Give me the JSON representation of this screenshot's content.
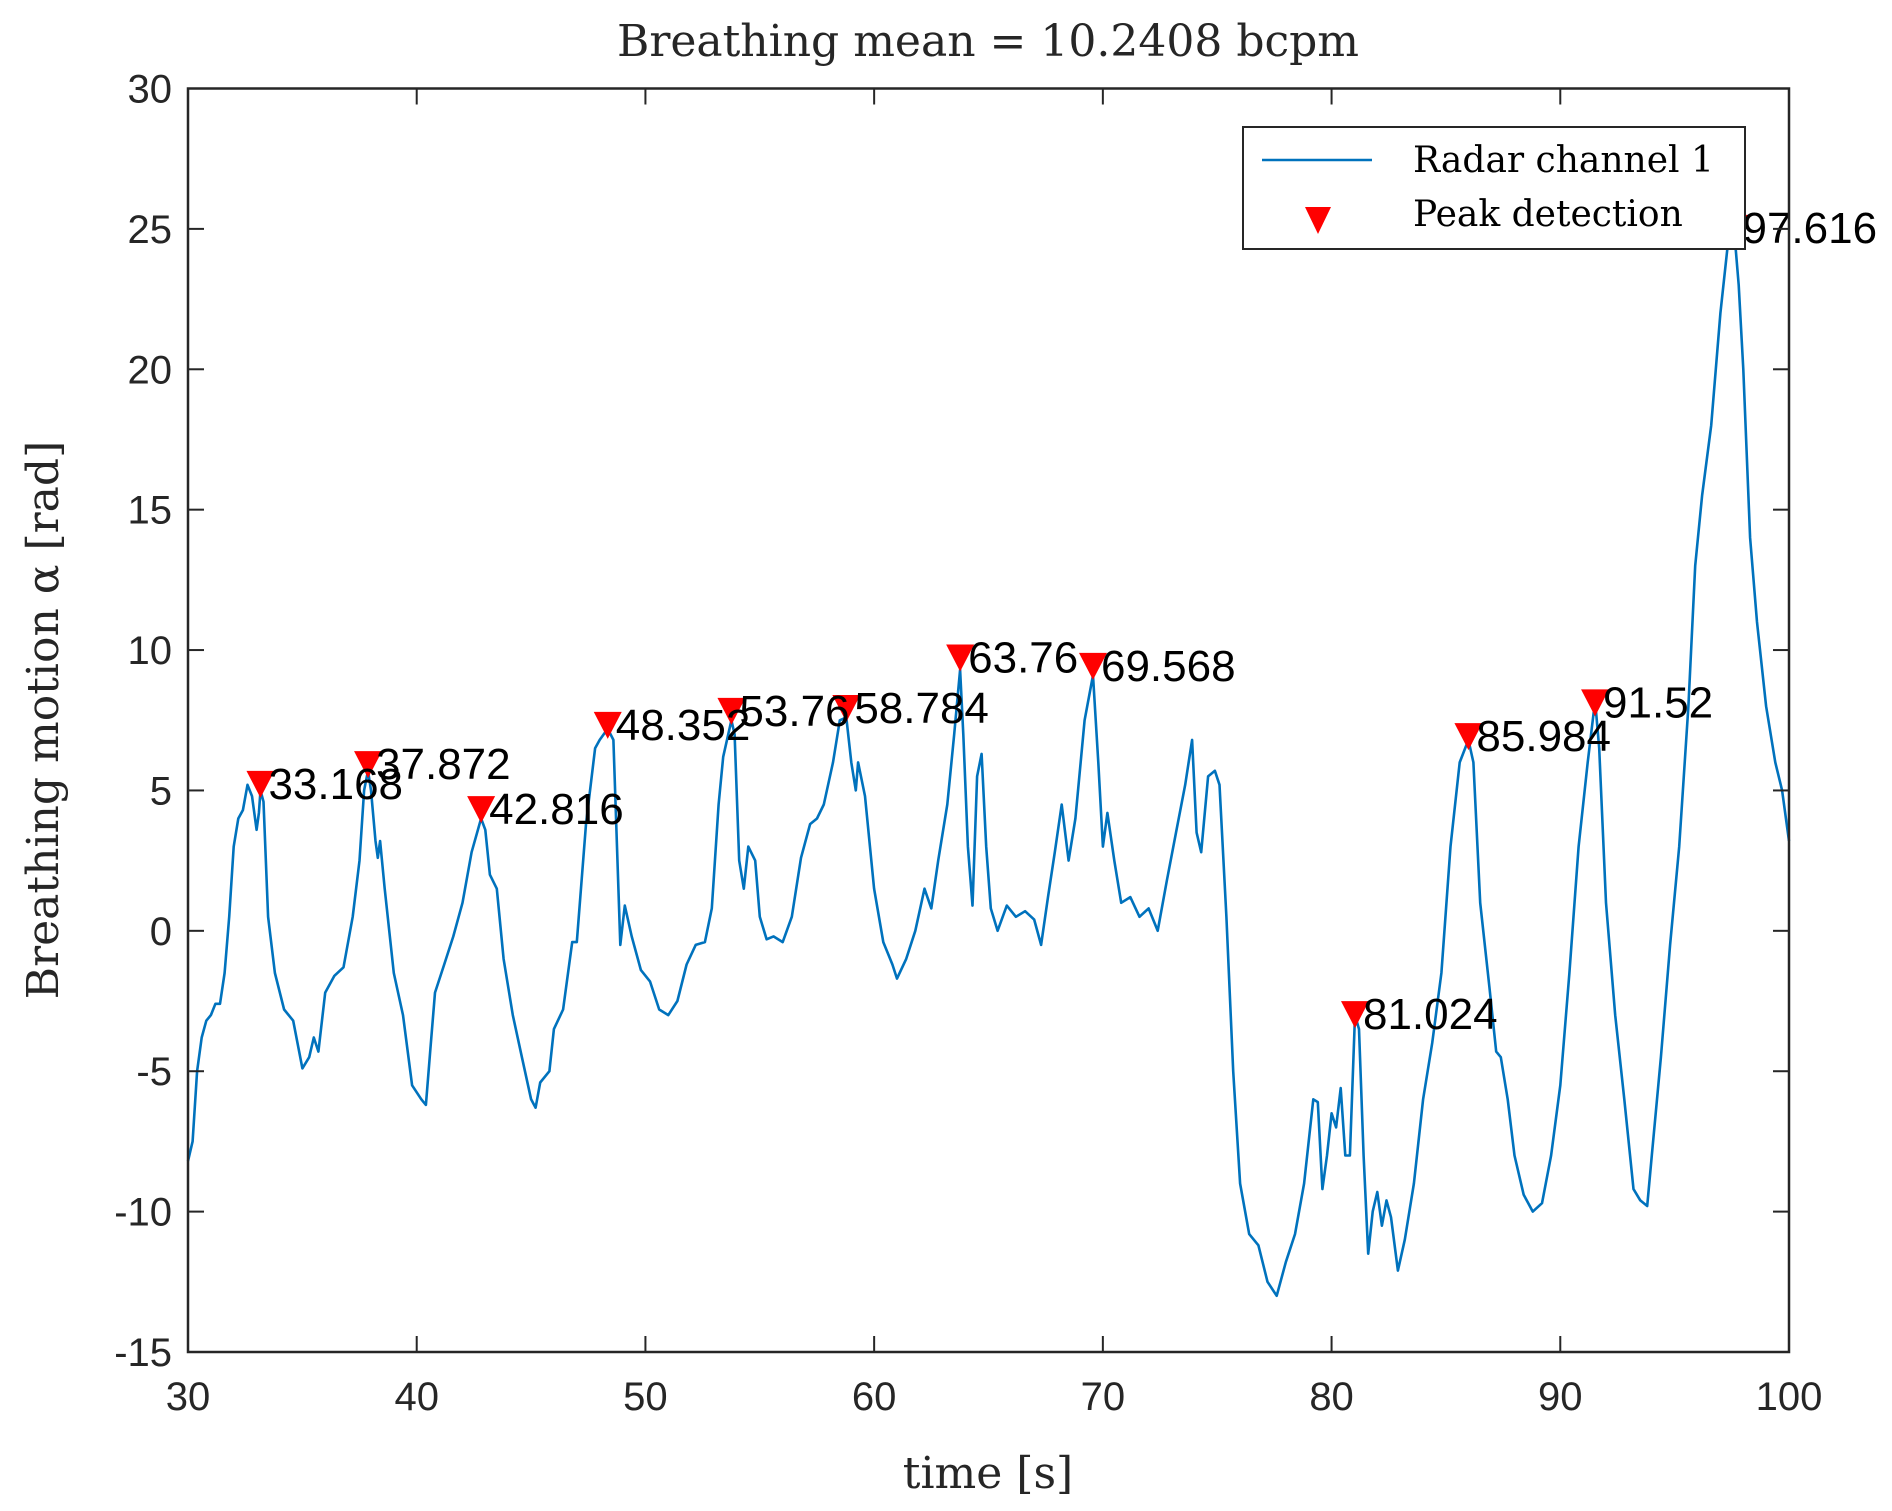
{
  "chart_data": {
    "type": "line",
    "title": "Breathing mean = 10.2408 bcpm",
    "xlabel": "time [s]",
    "ylabel": "Breathing motion α [rad]",
    "xlim": [
      30,
      100
    ],
    "ylim": [
      -15,
      30
    ],
    "xticks": [
      30,
      40,
      50,
      60,
      70,
      80,
      90,
      100
    ],
    "yticks": [
      -15,
      -10,
      -5,
      0,
      5,
      10,
      15,
      20,
      25,
      30
    ],
    "grid": false,
    "legend": {
      "placement": "top-right",
      "entries": [
        {
          "label": "Radar channel 1",
          "marker": "line",
          "color": "#0072BD"
        },
        {
          "label": "Peak detection",
          "marker": "triangle-down",
          "color": "#FF0000"
        }
      ]
    },
    "series": [
      {
        "name": "Radar channel 1",
        "color": "#0072BD",
        "points": [
          [
            30.0,
            -8.2
          ],
          [
            30.2,
            -7.5
          ],
          [
            30.4,
            -5.0
          ],
          [
            30.6,
            -3.8
          ],
          [
            30.8,
            -3.2
          ],
          [
            31.0,
            -3.0
          ],
          [
            31.2,
            -2.6
          ],
          [
            31.4,
            -2.6
          ],
          [
            31.6,
            -1.5
          ],
          [
            31.8,
            0.5
          ],
          [
            32.0,
            3.0
          ],
          [
            32.2,
            4.0
          ],
          [
            32.4,
            4.3
          ],
          [
            32.6,
            5.2
          ],
          [
            32.8,
            4.8
          ],
          [
            33.0,
            3.6
          ],
          [
            33.1,
            4.2
          ],
          [
            33.168,
            5.0
          ],
          [
            33.3,
            4.6
          ],
          [
            33.5,
            0.5
          ],
          [
            33.8,
            -1.5
          ],
          [
            34.2,
            -2.8
          ],
          [
            34.6,
            -3.2
          ],
          [
            35.0,
            -4.9
          ],
          [
            35.3,
            -4.5
          ],
          [
            35.5,
            -3.8
          ],
          [
            35.7,
            -4.3
          ],
          [
            36.0,
            -2.2
          ],
          [
            36.4,
            -1.6
          ],
          [
            36.8,
            -1.3
          ],
          [
            37.2,
            0.5
          ],
          [
            37.5,
            2.5
          ],
          [
            37.7,
            5.0
          ],
          [
            37.872,
            5.7
          ],
          [
            38.0,
            5.0
          ],
          [
            38.2,
            3.2
          ],
          [
            38.3,
            2.6
          ],
          [
            38.4,
            3.2
          ],
          [
            38.6,
            1.5
          ],
          [
            39.0,
            -1.5
          ],
          [
            39.4,
            -3.0
          ],
          [
            39.8,
            -5.5
          ],
          [
            40.2,
            -6.0
          ],
          [
            40.4,
            -6.2
          ],
          [
            40.6,
            -4.2
          ],
          [
            40.8,
            -2.2
          ],
          [
            41.2,
            -1.2
          ],
          [
            41.6,
            -0.2
          ],
          [
            42.0,
            1.0
          ],
          [
            42.4,
            2.8
          ],
          [
            42.816,
            4.0
          ],
          [
            43.0,
            3.6
          ],
          [
            43.2,
            2.0
          ],
          [
            43.5,
            1.5
          ],
          [
            43.8,
            -1.0
          ],
          [
            44.2,
            -3.0
          ],
          [
            44.6,
            -4.5
          ],
          [
            45.0,
            -6.0
          ],
          [
            45.2,
            -6.3
          ],
          [
            45.4,
            -5.4
          ],
          [
            45.8,
            -5.0
          ],
          [
            46.0,
            -3.5
          ],
          [
            46.4,
            -2.8
          ],
          [
            46.8,
            -0.4
          ],
          [
            47.0,
            -0.4
          ],
          [
            47.4,
            3.8
          ],
          [
            47.8,
            6.5
          ],
          [
            48.0,
            6.8
          ],
          [
            48.352,
            7.2
          ],
          [
            48.6,
            6.8
          ],
          [
            48.9,
            -0.5
          ],
          [
            49.1,
            0.9
          ],
          [
            49.4,
            -0.2
          ],
          [
            49.8,
            -1.4
          ],
          [
            50.2,
            -1.8
          ],
          [
            50.6,
            -2.8
          ],
          [
            51.0,
            -3.0
          ],
          [
            51.4,
            -2.5
          ],
          [
            51.8,
            -1.2
          ],
          [
            52.2,
            -0.5
          ],
          [
            52.6,
            -0.4
          ],
          [
            52.9,
            0.8
          ],
          [
            53.2,
            4.5
          ],
          [
            53.4,
            6.2
          ],
          [
            53.76,
            7.5
          ],
          [
            53.9,
            7.0
          ],
          [
            54.1,
            2.5
          ],
          [
            54.3,
            1.5
          ],
          [
            54.5,
            3.0
          ],
          [
            54.8,
            2.5
          ],
          [
            55.0,
            0.5
          ],
          [
            55.3,
            -0.3
          ],
          [
            55.6,
            -0.2
          ],
          [
            56.0,
            -0.4
          ],
          [
            56.4,
            0.5
          ],
          [
            56.8,
            2.6
          ],
          [
            57.2,
            3.8
          ],
          [
            57.5,
            4.0
          ],
          [
            57.8,
            4.5
          ],
          [
            58.2,
            6.0
          ],
          [
            58.5,
            7.5
          ],
          [
            58.784,
            7.6
          ],
          [
            59.0,
            6.0
          ],
          [
            59.2,
            5.0
          ],
          [
            59.3,
            6.0
          ],
          [
            59.6,
            4.8
          ],
          [
            60.0,
            1.5
          ],
          [
            60.4,
            -0.4
          ],
          [
            60.8,
            -1.2
          ],
          [
            61.0,
            -1.7
          ],
          [
            61.4,
            -1.0
          ],
          [
            61.8,
            0.0
          ],
          [
            62.2,
            1.5
          ],
          [
            62.5,
            0.8
          ],
          [
            62.8,
            2.5
          ],
          [
            63.2,
            4.5
          ],
          [
            63.5,
            7.0
          ],
          [
            63.76,
            9.3
          ],
          [
            63.9,
            7.0
          ],
          [
            64.1,
            3.0
          ],
          [
            64.3,
            0.9
          ],
          [
            64.5,
            5.5
          ],
          [
            64.7,
            6.3
          ],
          [
            64.9,
            3.0
          ],
          [
            65.1,
            0.8
          ],
          [
            65.4,
            0.0
          ],
          [
            65.8,
            0.9
          ],
          [
            66.2,
            0.5
          ],
          [
            66.6,
            0.7
          ],
          [
            67.0,
            0.4
          ],
          [
            67.3,
            -0.5
          ],
          [
            67.6,
            1.2
          ],
          [
            67.9,
            2.8
          ],
          [
            68.2,
            4.5
          ],
          [
            68.5,
            2.5
          ],
          [
            68.8,
            4.0
          ],
          [
            69.2,
            7.5
          ],
          [
            69.568,
            9.1
          ],
          [
            69.8,
            6.0
          ],
          [
            70.0,
            3.0
          ],
          [
            70.2,
            4.2
          ],
          [
            70.5,
            2.5
          ],
          [
            70.8,
            1.0
          ],
          [
            71.2,
            1.2
          ],
          [
            71.6,
            0.5
          ],
          [
            72.0,
            0.8
          ],
          [
            72.4,
            0.0
          ],
          [
            72.8,
            1.8
          ],
          [
            73.2,
            3.5
          ],
          [
            73.6,
            5.2
          ],
          [
            73.9,
            6.8
          ],
          [
            74.1,
            3.5
          ],
          [
            74.3,
            2.8
          ],
          [
            74.6,
            5.5
          ],
          [
            74.9,
            5.7
          ],
          [
            75.1,
            5.2
          ],
          [
            75.4,
            0.5
          ],
          [
            75.7,
            -5.0
          ],
          [
            76.0,
            -9.0
          ],
          [
            76.4,
            -10.8
          ],
          [
            76.8,
            -11.2
          ],
          [
            77.2,
            -12.5
          ],
          [
            77.6,
            -13.0
          ],
          [
            78.0,
            -11.8
          ],
          [
            78.4,
            -10.8
          ],
          [
            78.8,
            -9.0
          ],
          [
            79.2,
            -6.0
          ],
          [
            79.4,
            -6.1
          ],
          [
            79.6,
            -9.2
          ],
          [
            79.8,
            -8.0
          ],
          [
            80.0,
            -6.5
          ],
          [
            80.2,
            -7.0
          ],
          [
            80.4,
            -5.6
          ],
          [
            80.6,
            -8.0
          ],
          [
            80.8,
            -8.0
          ],
          [
            81.024,
            -3.0
          ],
          [
            81.2,
            -3.5
          ],
          [
            81.4,
            -8.0
          ],
          [
            81.6,
            -11.5
          ],
          [
            81.8,
            -10.0
          ],
          [
            82.0,
            -9.3
          ],
          [
            82.2,
            -10.5
          ],
          [
            82.4,
            -9.6
          ],
          [
            82.6,
            -10.2
          ],
          [
            82.9,
            -12.1
          ],
          [
            83.2,
            -11.0
          ],
          [
            83.6,
            -9.0
          ],
          [
            84.0,
            -6.0
          ],
          [
            84.4,
            -4.0
          ],
          [
            84.8,
            -1.5
          ],
          [
            85.2,
            3.0
          ],
          [
            85.6,
            6.0
          ],
          [
            85.984,
            6.8
          ],
          [
            86.2,
            6.0
          ],
          [
            86.5,
            1.0
          ],
          [
            86.9,
            -2.0
          ],
          [
            87.2,
            -4.3
          ],
          [
            87.4,
            -4.5
          ],
          [
            87.7,
            -6.0
          ],
          [
            88.0,
            -8.0
          ],
          [
            88.4,
            -9.4
          ],
          [
            88.8,
            -10.0
          ],
          [
            89.2,
            -9.7
          ],
          [
            89.6,
            -8.0
          ],
          [
            90.0,
            -5.5
          ],
          [
            90.4,
            -1.5
          ],
          [
            90.8,
            3.0
          ],
          [
            91.2,
            6.0
          ],
          [
            91.52,
            8.2
          ],
          [
            91.7,
            6.5
          ],
          [
            92.0,
            1.0
          ],
          [
            92.4,
            -3.0
          ],
          [
            92.8,
            -6.0
          ],
          [
            93.2,
            -9.2
          ],
          [
            93.5,
            -9.6
          ],
          [
            93.8,
            -9.8
          ],
          [
            94.0,
            -8.0
          ],
          [
            94.4,
            -4.5
          ],
          [
            94.8,
            -0.5
          ],
          [
            95.2,
            3.0
          ],
          [
            95.6,
            8.0
          ],
          [
            95.9,
            13.0
          ],
          [
            96.2,
            15.5
          ],
          [
            96.6,
            18.0
          ],
          [
            97.0,
            22.0
          ],
          [
            97.4,
            25.0
          ],
          [
            97.616,
            24.8
          ],
          [
            97.8,
            23.0
          ],
          [
            98.0,
            20.0
          ],
          [
            98.3,
            14.0
          ],
          [
            98.6,
            11.0
          ],
          [
            99.0,
            8.0
          ],
          [
            99.4,
            6.0
          ],
          [
            99.7,
            5.0
          ],
          [
            100.0,
            3.2
          ]
        ]
      }
    ],
    "peaks": [
      {
        "t": 33.168,
        "value": 5.2,
        "label": "33.168"
      },
      {
        "t": 37.872,
        "value": 5.9,
        "label": "37.872"
      },
      {
        "t": 42.816,
        "value": 4.3,
        "label": "42.816"
      },
      {
        "t": 48.352,
        "value": 7.3,
        "label": "48.352"
      },
      {
        "t": 53.76,
        "value": 7.8,
        "label": "53.76"
      },
      {
        "t": 58.784,
        "value": 7.9,
        "label": "58.784"
      },
      {
        "t": 63.76,
        "value": 9.7,
        "label": "63.76"
      },
      {
        "t": 69.568,
        "value": 9.4,
        "label": "69.568"
      },
      {
        "t": 81.024,
        "value": -3.0,
        "label": "81.024"
      },
      {
        "t": 85.984,
        "value": 6.9,
        "label": "85.984"
      },
      {
        "t": 91.52,
        "value": 8.1,
        "label": "91.52"
      },
      {
        "t": 97.616,
        "value": 25.0,
        "label": "97.616"
      }
    ]
  }
}
